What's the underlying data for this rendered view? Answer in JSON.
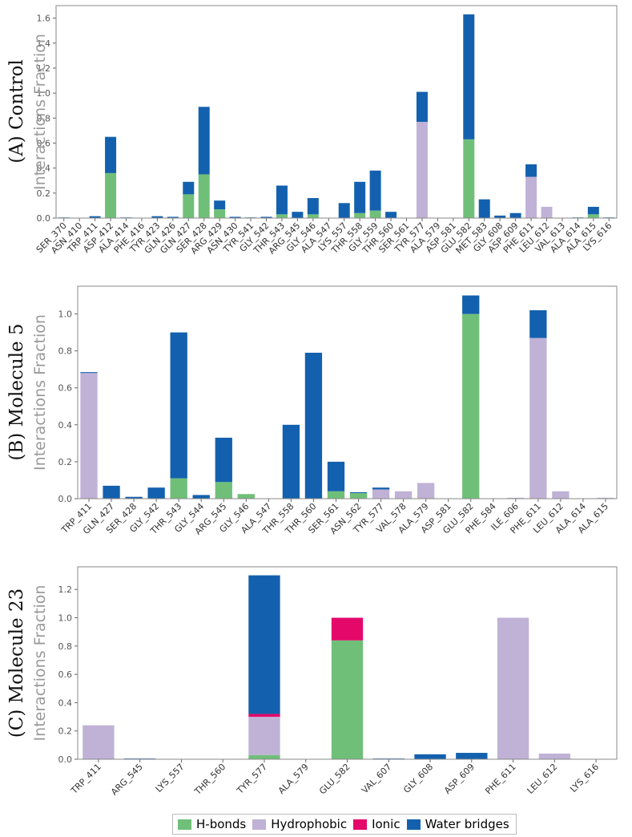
{
  "legend": {
    "items": [
      {
        "label": "H-bonds",
        "color": "#70bf79"
      },
      {
        "label": "Hydrophobic",
        "color": "#c0b2d6"
      },
      {
        "label": "Ionic",
        "color": "#e4086a"
      },
      {
        "label": "Water bridges",
        "color": "#1361ae"
      }
    ]
  },
  "chart_data": [
    {
      "type": "bar",
      "stacked": true,
      "title": "(A) Control",
      "ylabel": "Interactions Fraction",
      "ylim": [
        0,
        1.7
      ],
      "yticks": [
        0.0,
        0.2,
        0.4,
        0.6,
        0.8,
        1.0,
        1.2,
        1.4,
        1.6
      ],
      "categories": [
        "SER_370",
        "ASN_410",
        "TRP_411",
        "ASP_412",
        "ALA_414",
        "PHE_416",
        "TYR_423",
        "GLN_426",
        "GLN_427",
        "SER_428",
        "ARG_429",
        "ASN_430",
        "TYR_541",
        "GLY_542",
        "THR_543",
        "ARG_545",
        "GLY_546",
        "ALA_547",
        "LYS_557",
        "THR_558",
        "GLY_559",
        "THR_560",
        "SER_561",
        "TYR_577",
        "ALA_579",
        "ASP_581",
        "GLU_582",
        "MET_583",
        "GLY_608",
        "ASP_609",
        "PHE_611",
        "LEU_612",
        "VAL_613",
        "ALA_614",
        "ALA_615",
        "LYS_616"
      ],
      "series": [
        {
          "name": "H-bonds",
          "values": [
            0,
            0,
            0,
            0.36,
            0,
            0,
            0,
            0,
            0.19,
            0.35,
            0.07,
            0,
            0,
            0,
            0.03,
            0,
            0.03,
            0,
            0,
            0.04,
            0.06,
            0,
            0,
            0,
            0,
            0,
            0.63,
            0,
            0,
            0,
            0,
            0,
            0,
            0,
            0.03,
            0
          ]
        },
        {
          "name": "Hydrophobic",
          "values": [
            0,
            0,
            0,
            0,
            0,
            0,
            0,
            0,
            0,
            0,
            0,
            0,
            0,
            0,
            0,
            0,
            0,
            0,
            0,
            0,
            0,
            0,
            0,
            0.77,
            0,
            0,
            0,
            0,
            0,
            0,
            0.33,
            0.09,
            0,
            0,
            0,
            0
          ]
        },
        {
          "name": "Ionic",
          "values": [
            0,
            0,
            0,
            0,
            0,
            0,
            0,
            0,
            0,
            0,
            0,
            0,
            0,
            0,
            0,
            0,
            0,
            0,
            0,
            0,
            0,
            0,
            0,
            0,
            0,
            0,
            0,
            0,
            0,
            0,
            0,
            0,
            0,
            0,
            0,
            0
          ]
        },
        {
          "name": "Water bridges",
          "values": [
            0.005,
            0,
            0.015,
            0.29,
            0.005,
            0,
            0.015,
            0.01,
            0.1,
            0.54,
            0.07,
            0.01,
            0.005,
            0.01,
            0.23,
            0.05,
            0.13,
            0,
            0.12,
            0.25,
            0.32,
            0.05,
            0,
            0.24,
            0,
            0,
            1.0,
            0.15,
            0.02,
            0.04,
            0.1,
            0,
            0,
            0.005,
            0.06,
            0.005
          ]
        }
      ]
    },
    {
      "type": "bar",
      "stacked": true,
      "title": "(B) Molecule 5",
      "ylabel": "Interactions Fraction",
      "ylim": [
        0,
        1.15
      ],
      "yticks": [
        0.0,
        0.2,
        0.4,
        0.6,
        0.8,
        1.0
      ],
      "categories": [
        "TRP_411",
        "GLN_427",
        "SER_428",
        "GLY_542",
        "THR_543",
        "GLY_544",
        "ARG_545",
        "GLY_546",
        "ALA_547",
        "THR_558",
        "THR_560",
        "SER_561",
        "ASN_562",
        "TYR_577",
        "VAL_578",
        "ALA_579",
        "ASP_581",
        "GLU_582",
        "PHE_584",
        "ILE_606",
        "PHE_611",
        "LEU_612",
        "ALA_614",
        "ALA_615"
      ],
      "series": [
        {
          "name": "H-bonds",
          "values": [
            0,
            0,
            0,
            0,
            0.11,
            0,
            0.09,
            0.025,
            0,
            0,
            0,
            0.04,
            0.03,
            0,
            0,
            0,
            0,
            1.0,
            0,
            0,
            0,
            0,
            0,
            0
          ]
        },
        {
          "name": "Hydrophobic",
          "values": [
            0.68,
            0,
            0,
            0,
            0,
            0,
            0,
            0,
            0,
            0,
            0,
            0,
            0,
            0.05,
            0.04,
            0.085,
            0,
            0,
            0,
            0.005,
            0.87,
            0.04,
            0,
            0.005
          ]
        },
        {
          "name": "Ionic",
          "values": [
            0,
            0,
            0,
            0,
            0,
            0,
            0,
            0,
            0,
            0,
            0,
            0,
            0,
            0,
            0,
            0,
            0,
            0,
            0,
            0,
            0,
            0,
            0,
            0
          ]
        },
        {
          "name": "Water bridges",
          "values": [
            0.005,
            0.07,
            0.01,
            0.06,
            0.79,
            0.02,
            0.24,
            0,
            0,
            0.4,
            0.79,
            0.16,
            0.005,
            0.01,
            0,
            0,
            0,
            0.1,
            0,
            0,
            0.15,
            0,
            0,
            0
          ]
        }
      ]
    },
    {
      "type": "bar",
      "stacked": true,
      "title": "(C) Molecule 23",
      "ylabel": "Interactions Fraction",
      "ylim": [
        0,
        1.36
      ],
      "yticks": [
        0.0,
        0.2,
        0.4,
        0.6,
        0.8,
        1.0,
        1.2
      ],
      "categories": [
        "TRP_411",
        "ARG_545",
        "LYS_557",
        "THR_560",
        "TYR_577",
        "ALA_579",
        "GLU_582",
        "VAL_607",
        "GLY_608",
        "ASP_609",
        "PHE_611",
        "LEU_612",
        "LYS_616"
      ],
      "series": [
        {
          "name": "H-bonds",
          "values": [
            0,
            0,
            0,
            0,
            0.03,
            0,
            0.84,
            0,
            0,
            0,
            0,
            0,
            0
          ]
        },
        {
          "name": "Hydrophobic",
          "values": [
            0.24,
            0,
            0,
            0,
            0.27,
            0,
            0,
            0,
            0,
            0,
            1.0,
            0.04,
            0
          ]
        },
        {
          "name": "Ionic",
          "values": [
            0,
            0,
            0,
            0,
            0.02,
            0,
            0.16,
            0,
            0,
            0,
            0,
            0,
            0
          ]
        },
        {
          "name": "Water bridges",
          "values": [
            0,
            0.005,
            0,
            0,
            0.98,
            0,
            0,
            0.005,
            0.035,
            0.045,
            0,
            0,
            0
          ]
        }
      ]
    }
  ]
}
